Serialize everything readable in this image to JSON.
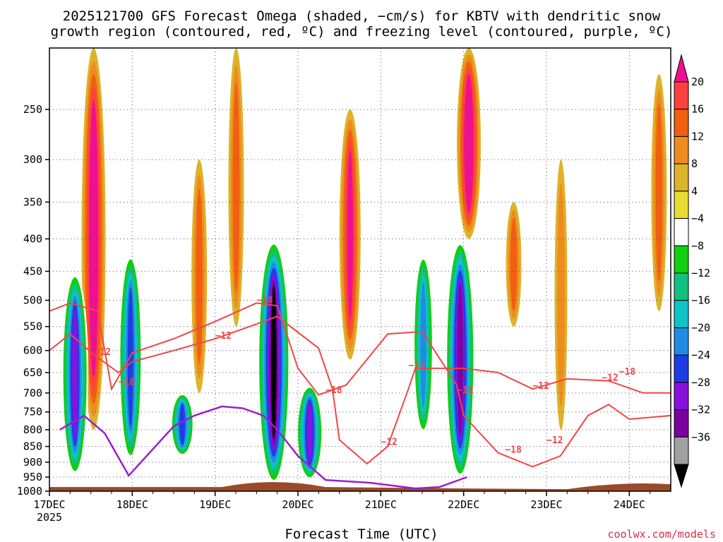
{
  "title_line1": "2025121700 GFS Forecast Omega (shaded, −cm/s) for KBTV with dendritic snow",
  "title_line2": "growth region (contoured, red, ºC) and freezing level (contoured, purple, ºC)",
  "x_axis_label": "Forecast Time (UTC)",
  "credit": "coolwx.com/models",
  "colors": {
    "dgz_contour": "#f04646",
    "freezing_contour": "#9a1fd0",
    "terrain": "#9a4a28",
    "grid": "#555555"
  },
  "chart_data": {
    "type": "heatmap",
    "title": "2025121700 GFS Forecast Omega for KBTV",
    "xlabel": "Forecast Time (UTC)",
    "ylabel": "",
    "y_axis": {
      "direction": "pressure_decreasing_up",
      "ylim": [
        1000,
        200
      ],
      "ticks": [
        250,
        300,
        350,
        400,
        450,
        500,
        550,
        600,
        650,
        700,
        750,
        800,
        850,
        900,
        950,
        1000
      ],
      "tick_labels": [
        "250",
        "300",
        "350",
        "400",
        "450",
        "500",
        "550",
        "600",
        "650",
        "700",
        "750",
        "800",
        "850",
        "900",
        "950",
        "1000"
      ]
    },
    "x_axis": {
      "xlim_hours": [
        0,
        180
      ],
      "ticks_hours": [
        0,
        24,
        48,
        72,
        96,
        120,
        144,
        168
      ],
      "tick_labels": [
        "17DEC",
        "18DEC",
        "19DEC",
        "20DEC",
        "21DEC",
        "22DEC",
        "23DEC",
        "24DEC"
      ],
      "first_year_label": "2025"
    },
    "colorbar": {
      "levels": [
        20,
        16,
        12,
        8,
        4,
        -4,
        -8,
        -12,
        -16,
        -20,
        -24,
        -28,
        -32,
        -36
      ],
      "labels": [
        "20",
        "16",
        "12",
        "8",
        "4",
        "−4",
        "−8",
        "−12",
        "−16",
        "−20",
        "−24",
        "−28",
        "−32",
        "−36"
      ],
      "colors": [
        "#ee1090",
        "#ff4040",
        "#f06010",
        "#f08c1e",
        "#ddb32a",
        "#e8dc30",
        "#ffffff",
        "#0fcf0f",
        "#10c080",
        "#0ec3c8",
        "#1e8ce6",
        "#1e3ce6",
        "#8a10e0",
        "#7a00a0",
        "#a0a0a0",
        "#000000"
      ]
    },
    "omega_features": [
      {
        "center_hour": 12.8,
        "p_top": 200,
        "p_bottom": 800,
        "value": 24,
        "note": "strong descent"
      },
      {
        "center_hour": 7.4,
        "p_top": 450,
        "p_bottom": 950,
        "value": -28,
        "note": "ascent"
      },
      {
        "center_hour": 23.5,
        "p_top": 420,
        "p_bottom": 900,
        "value": -24
      },
      {
        "center_hour": 43.4,
        "p_top": 300,
        "p_bottom": 700,
        "value": 14
      },
      {
        "center_hour": 38.5,
        "p_top": 700,
        "p_bottom": 880,
        "value": -24
      },
      {
        "center_hour": 54.1,
        "p_top": 200,
        "p_bottom": 550,
        "value": 14
      },
      {
        "center_hour": 65.0,
        "p_top": 400,
        "p_bottom": 980,
        "value": -38,
        "note": "strong ascent"
      },
      {
        "center_hour": 75.4,
        "p_top": 680,
        "p_bottom": 960,
        "value": -28
      },
      {
        "center_hour": 87.1,
        "p_top": 250,
        "p_bottom": 620,
        "value": 20
      },
      {
        "center_hour": 108.3,
        "p_top": 420,
        "p_bottom": 820,
        "value": -20
      },
      {
        "center_hour": 121.5,
        "p_top": 200,
        "p_bottom": 400,
        "value": 24
      },
      {
        "center_hour": 119.0,
        "p_top": 400,
        "p_bottom": 960,
        "value": -34,
        "note": "strong ascent"
      },
      {
        "center_hour": 134.5,
        "p_top": 350,
        "p_bottom": 550,
        "value": 14
      },
      {
        "center_hour": 148.2,
        "p_top": 300,
        "p_bottom": 800,
        "value": 8
      },
      {
        "center_hour": 176.6,
        "p_top": 220,
        "p_bottom": 520,
        "value": 12
      }
    ],
    "dgz_contours": {
      "levels_c": [
        -12,
        -18
      ],
      "labels": [
        "−12",
        "−18"
      ],
      "minus12_hpa": [
        [
          0,
          600
        ],
        [
          6,
          565
        ],
        [
          13,
          610
        ],
        [
          20,
          650
        ],
        [
          24,
          625
        ],
        [
          36,
          600
        ],
        [
          48,
          575
        ],
        [
          60,
          545
        ],
        [
          66,
          530
        ],
        [
          78,
          595
        ],
        [
          82,
          690
        ],
        [
          84,
          830
        ],
        [
          92,
          905
        ],
        [
          98,
          850
        ],
        [
          104,
          690
        ],
        [
          106,
          640
        ],
        [
          120,
          640
        ],
        [
          130,
          650
        ],
        [
          140,
          690
        ],
        [
          150,
          665
        ],
        [
          162,
          670
        ],
        [
          172,
          700
        ],
        [
          180,
          700
        ]
      ],
      "minus18_hpa": [
        [
          0,
          520
        ],
        [
          6,
          505
        ],
        [
          14,
          520
        ],
        [
          18,
          690
        ],
        [
          24,
          605
        ],
        [
          36,
          575
        ],
        [
          48,
          540
        ],
        [
          60,
          505
        ],
        [
          66,
          510
        ],
        [
          72,
          640
        ],
        [
          78,
          705
        ],
        [
          86,
          680
        ],
        [
          98,
          565
        ],
        [
          108,
          560
        ],
        [
          118,
          680
        ],
        [
          120,
          760
        ],
        [
          130,
          870
        ],
        [
          140,
          915
        ],
        [
          148,
          880
        ],
        [
          156,
          760
        ],
        [
          162,
          730
        ],
        [
          168,
          770
        ],
        [
          180,
          760
        ]
      ]
    },
    "freezing_level_contour_hpa": [
      [
        3,
        800
      ],
      [
        10,
        760
      ],
      [
        16,
        810
      ],
      [
        23,
        945
      ],
      [
        36,
        790
      ],
      [
        42,
        760
      ],
      [
        50,
        735
      ],
      [
        56,
        740
      ],
      [
        62,
        760
      ],
      [
        66,
        800
      ],
      [
        72,
        880
      ],
      [
        80,
        960
      ],
      [
        93,
        970
      ],
      [
        106,
        990
      ],
      [
        113,
        985
      ],
      [
        121,
        950
      ]
    ],
    "terrain_surface_hpa": 985
  }
}
